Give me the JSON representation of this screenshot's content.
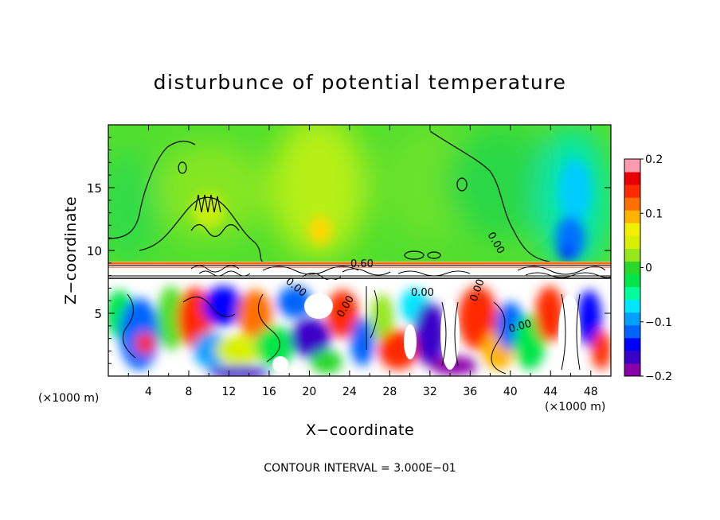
{
  "chart_data": {
    "type": "heatmap",
    "title": "disturbunce of potential temperature",
    "xlabel": "X−coordinate",
    "ylabel": "Z−coordinate",
    "x_unit_left": "(×1000 m)",
    "x_unit_right": "(×1000 m)",
    "xlim": [
      0,
      50
    ],
    "ylim": [
      0,
      20
    ],
    "xticks": [
      4,
      8,
      12,
      16,
      20,
      24,
      28,
      32,
      36,
      40,
      44,
      48
    ],
    "xtick_labels": [
      "4",
      "8",
      "12",
      "16",
      "20",
      "24",
      "28",
      "32",
      "36",
      "40",
      "44",
      "48"
    ],
    "yticks": [
      5,
      10,
      15
    ],
    "ytick_labels": [
      "5",
      "10",
      "15"
    ],
    "colorbar": {
      "min": -0.2,
      "max": 0.2,
      "ticks": [
        0.2,
        0.1,
        0,
        -0.1,
        -0.2
      ],
      "tick_labels": [
        "0.2",
        "0.1",
        "0",
        "−0.1",
        "−0.2"
      ],
      "colors": [
        "#8a00a8",
        "#3a00c8",
        "#0000ff",
        "#0064ff",
        "#00a0ff",
        "#00e6ff",
        "#00ff9a",
        "#00e64a",
        "#2ad82a",
        "#96e620",
        "#d8f000",
        "#f0f000",
        "#ffb400",
        "#ff7000",
        "#ff2a00",
        "#e60000",
        "#ff9ab0"
      ]
    },
    "contour_labels": [
      "0.60",
      "0.00",
      "0.00",
      "0.00",
      "0.00",
      "0.00",
      "0.00"
    ],
    "footer": "CONTOUR INTERVAL = 3.000E−01",
    "field": {
      "upper_layer": {
        "z_range": [
          9,
          20
        ],
        "typical_value": 0.0,
        "warm_core_x": [
          17,
          26
        ],
        "cold_core_x": [
          43,
          48
        ]
      },
      "inversion_band": {
        "z_range": [
          7.5,
          9
        ],
        "value": "white (|dθ| > 0.2)"
      },
      "lower_layer": {
        "z_range": [
          0,
          7.5
        ],
        "pattern": "turbulent eddies, alternating ±0.2"
      }
    }
  }
}
